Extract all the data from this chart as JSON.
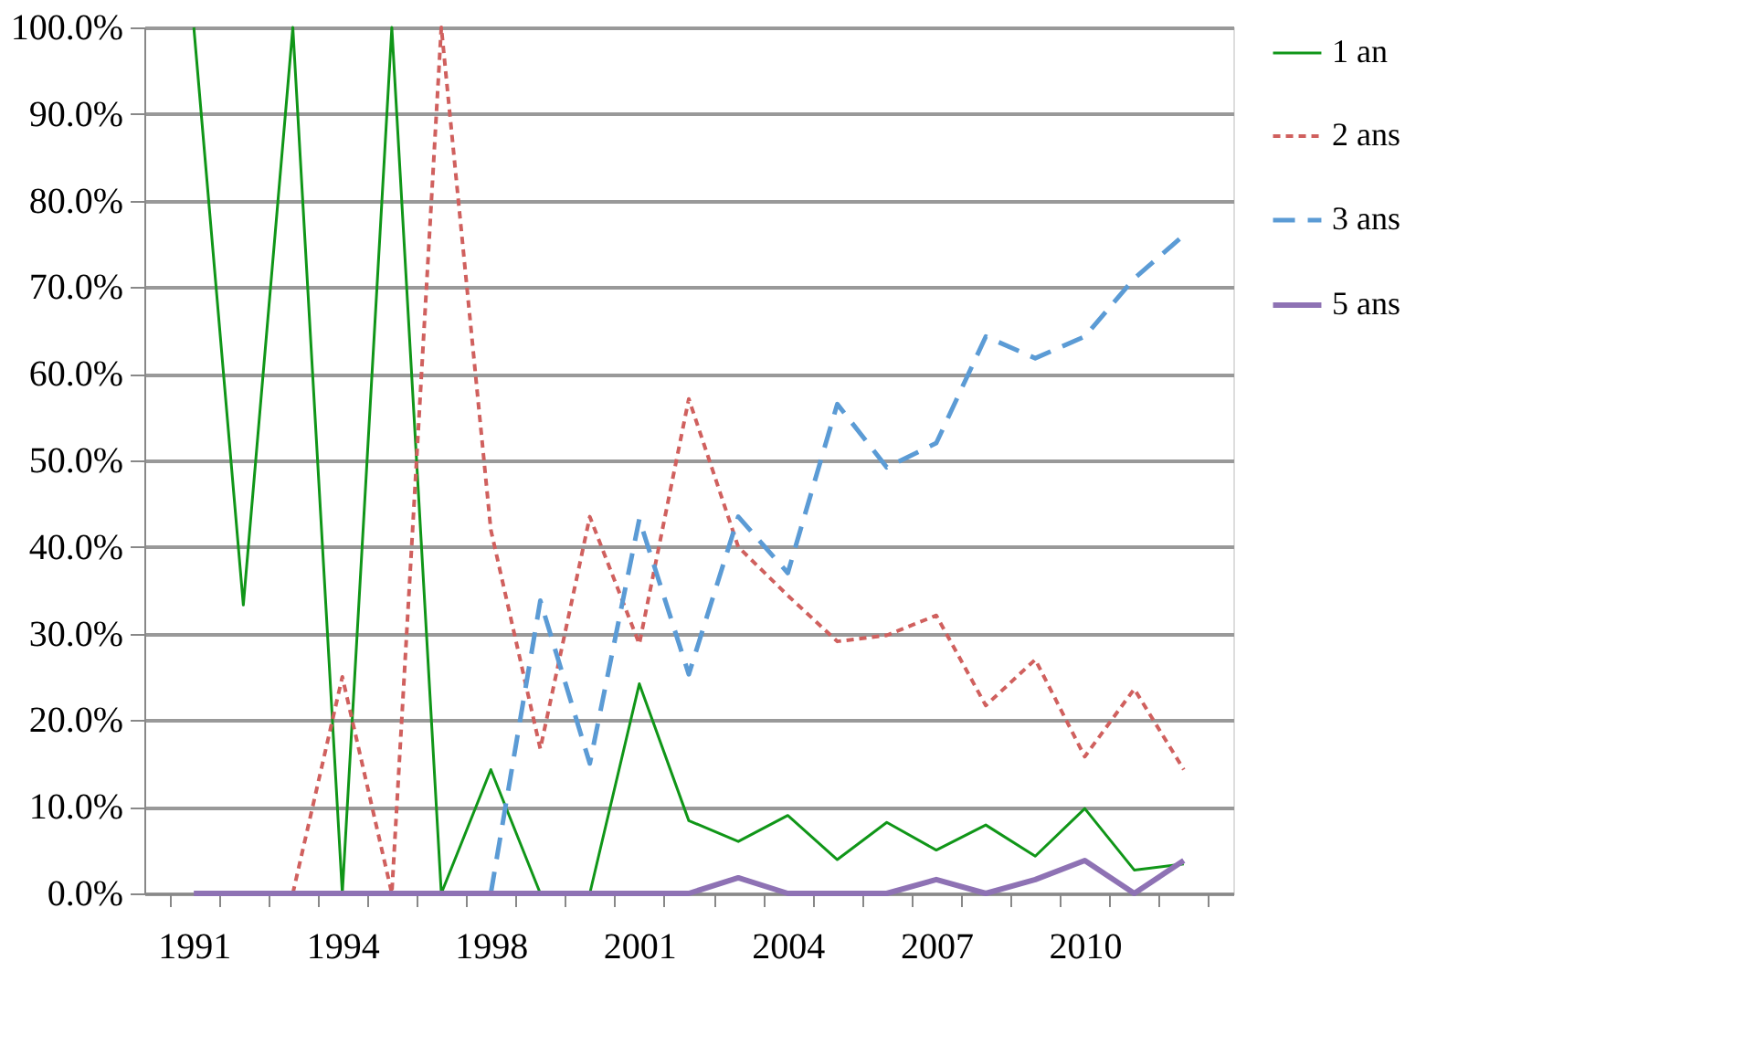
{
  "chart_data": {
    "type": "line",
    "categories": [
      "1991",
      null,
      null,
      "1994",
      null,
      null,
      "1998",
      null,
      null,
      "2001",
      null,
      null,
      "2004",
      null,
      null,
      "2007",
      null,
      null,
      "2010",
      null,
      null
    ],
    "series": [
      {
        "name": "1 an",
        "color": "#109618",
        "line_style": "solid",
        "values": [
          100,
          33.3,
          100,
          0,
          100,
          0,
          14.3,
          0,
          0,
          24.2,
          8.4,
          6.0,
          9.0,
          3.9,
          8.2,
          5.0,
          7.9,
          4.3,
          9.8,
          2.7,
          3.4
        ]
      },
      {
        "name": "2 ans",
        "color": "#d0605e",
        "line_style": "dotted",
        "values": [
          null,
          null,
          0,
          25.0,
          0,
          100,
          42.0,
          16.7,
          43.5,
          28.8,
          57.1,
          40.0,
          34.4,
          29.1,
          29.8,
          32.1,
          21.7,
          27.0,
          15.8,
          23.6,
          14.3
        ]
      },
      {
        "name": "3 ans",
        "color": "#5b9bd5",
        "line_style": "dashed",
        "values": [
          null,
          null,
          null,
          null,
          null,
          null,
          0,
          33.8,
          15.0,
          43.2,
          25.3,
          43.5,
          37.0,
          56.5,
          49.2,
          52.0,
          64.3,
          61.8,
          64.3,
          71.0,
          76.0
        ]
      },
      {
        "name": "5 ans",
        "color": "#8e72b4",
        "line_style": "solid",
        "values": [
          0,
          0,
          0,
          0,
          0,
          0,
          0,
          0,
          0,
          0,
          0,
          1.8,
          0,
          0,
          0,
          1.6,
          0,
          1.6,
          3.8,
          0,
          3.8
        ]
      }
    ],
    "ylim": [
      0,
      100
    ],
    "yticks": [
      {
        "value": 0,
        "label": "0.0%"
      },
      {
        "value": 10,
        "label": "10.0%"
      },
      {
        "value": 20,
        "label": "20.0%"
      },
      {
        "value": 30,
        "label": "30.0%"
      },
      {
        "value": 40,
        "label": "40.0%"
      },
      {
        "value": 50,
        "label": "50.0%"
      },
      {
        "value": 60,
        "label": "60.0%"
      },
      {
        "value": 70,
        "label": "70.0%"
      },
      {
        "value": 80,
        "label": "80.0%"
      },
      {
        "value": 90,
        "label": "90.0%"
      },
      {
        "value": 100,
        "label": "100.0%"
      }
    ],
    "grid": "y",
    "legend": "right",
    "marker": "none"
  }
}
